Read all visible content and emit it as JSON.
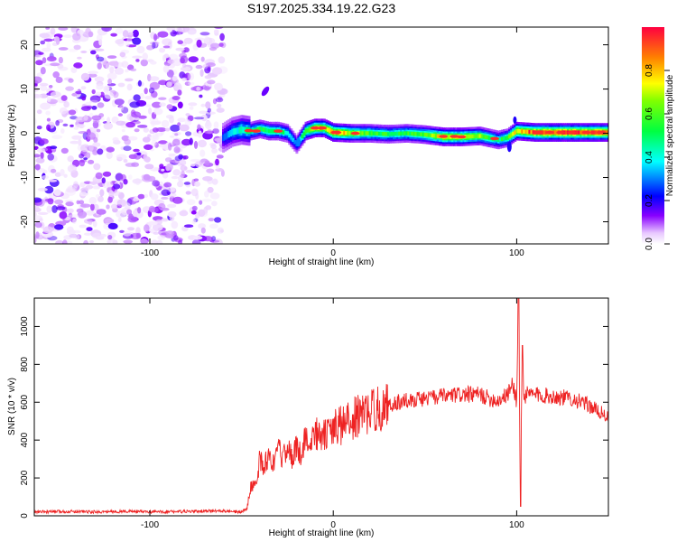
{
  "title": "S197.2025.334.19.22.G23",
  "chart_data": [
    {
      "type": "heatmap",
      "xlabel": "Height of straight line (km)",
      "ylabel": "Frequency (Hz)",
      "xlim": [
        -163,
        150
      ],
      "ylim": [
        -25,
        24
      ],
      "xticks": [
        -100,
        0,
        100
      ],
      "yticks": [
        20,
        10,
        0,
        -10,
        -20
      ],
      "colorbar": {
        "label": "Normalized spectral amplitude",
        "range": [
          0,
          1
        ],
        "ticks": [
          "0.0",
          "0.2",
          "0.4",
          "0.6",
          "0.8"
        ],
        "colormap": [
          "#ffffff",
          "#d8b8f8",
          "#8800ff",
          "#0000ff",
          "#00ffff",
          "#00ff00",
          "#ffff00",
          "#ff8000",
          "#ff0040"
        ]
      },
      "noise_region_x": [
        -163,
        -60
      ],
      "ridge": {
        "x": [
          -60,
          -55,
          -50,
          -45,
          -40,
          -35,
          -30,
          -25,
          -20,
          -15,
          -10,
          -5,
          0,
          10,
          20,
          30,
          40,
          50,
          60,
          70,
          80,
          90,
          95,
          100,
          110,
          120,
          130,
          140,
          150
        ],
        "freq": [
          -1,
          0.3,
          0.8,
          0.5,
          1,
          0.5,
          0.5,
          0,
          -2.5,
          0.5,
          1.2,
          1.2,
          0.2,
          0,
          0,
          -0.2,
          0,
          -0.3,
          -0.8,
          -0.8,
          -0.6,
          -1.5,
          -1,
          0.5,
          0.2,
          0.2,
          0.2,
          0.2,
          0.2
        ],
        "amplitude": [
          0.25,
          0.35,
          0.45,
          0.5,
          0.55,
          0.55,
          0.55,
          0.45,
          0.3,
          0.6,
          0.85,
          0.75,
          0.9,
          0.7,
          0.6,
          0.55,
          0.55,
          0.6,
          0.8,
          0.75,
          0.65,
          0.5,
          0.55,
          0.8,
          0.95,
          0.95,
          0.95,
          0.95,
          0.95
        ]
      }
    },
    {
      "type": "line",
      "xlabel": "Height of straight line (km)",
      "ylabel": "SNR (10 * v/v)",
      "xlim": [
        -163,
        150
      ],
      "ylim": [
        0,
        1150
      ],
      "xticks": [
        -100,
        0,
        100
      ],
      "yticks": [
        0,
        200,
        400,
        600,
        800,
        1000
      ],
      "color": "#ee2222",
      "series": [
        {
          "x": [
            -163,
            -150,
            -140,
            -130,
            -120,
            -110,
            -100,
            -90,
            -80,
            -70,
            -60,
            -55,
            -50,
            -47,
            -45,
            -42,
            -40,
            -38,
            -35,
            -32,
            -30,
            -27,
            -25,
            -22,
            -20,
            -18,
            -15,
            -12,
            -10,
            -8,
            -5,
            0,
            5,
            10,
            15,
            20,
            25,
            30,
            35,
            40,
            50,
            60,
            70,
            80,
            85,
            90,
            95,
            98,
            100,
            101,
            102,
            103,
            104,
            105,
            110,
            120,
            130,
            140,
            150
          ],
          "values": [
            20,
            22,
            24,
            20,
            22,
            24,
            20,
            22,
            22,
            25,
            25,
            20,
            20,
            40,
            150,
            180,
            300,
            250,
            330,
            260,
            350,
            300,
            400,
            280,
            380,
            320,
            430,
            350,
            460,
            410,
            420,
            460,
            480,
            510,
            530,
            550,
            570,
            580,
            600,
            610,
            620,
            630,
            640,
            640,
            620,
            610,
            640,
            700,
            600,
            1150,
            50,
            900,
            620,
            640,
            640,
            630,
            620,
            580,
            520
          ]
        }
      ]
    }
  ]
}
